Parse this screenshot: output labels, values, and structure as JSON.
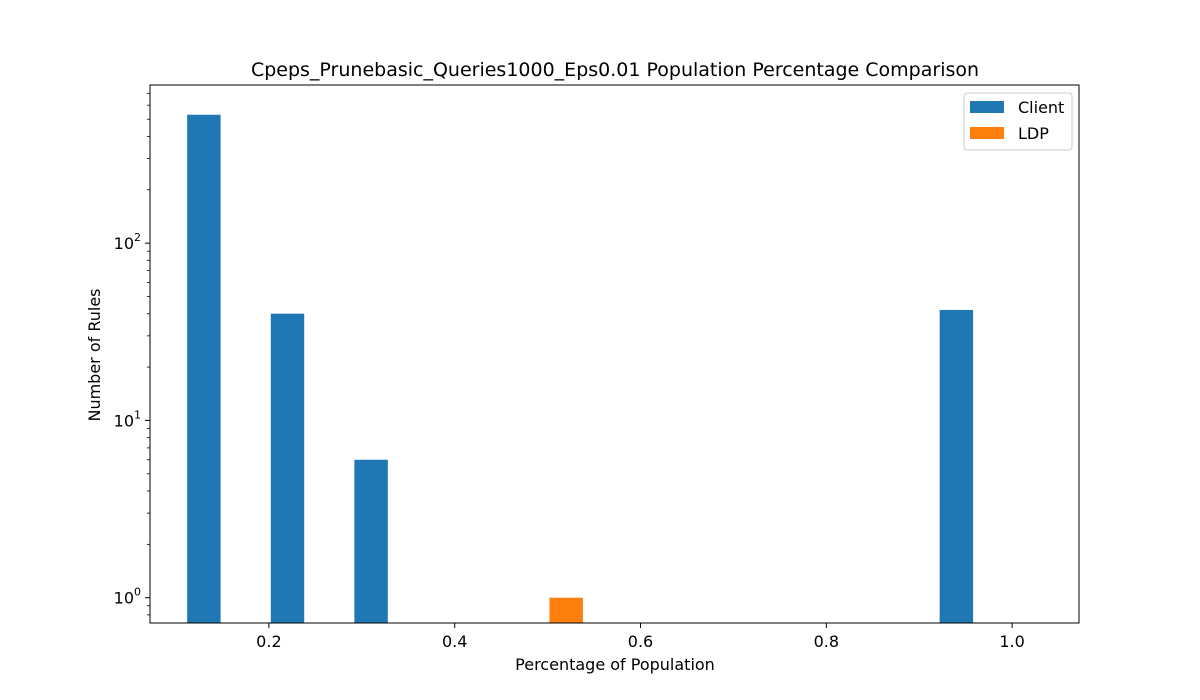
{
  "chart_data": {
    "type": "bar",
    "title": "Cpeps_Prunebasic_Queries1000_Eps0.01 Population Percentage Comparison",
    "xlabel": "Percentage of Population",
    "ylabel": "Number of Rules",
    "y_scale": "log",
    "xlim": [
      0.072,
      1.072
    ],
    "ylim": [
      0.72,
      780
    ],
    "grid": false,
    "legend_position": "top-right",
    "x_ticks": [
      {
        "value": 0.2,
        "label": "0.2"
      },
      {
        "value": 0.4,
        "label": "0.4"
      },
      {
        "value": 0.6,
        "label": "0.6"
      },
      {
        "value": 0.8,
        "label": "0.8"
      },
      {
        "value": 1.0,
        "label": "1.0"
      }
    ],
    "y_ticks": [
      {
        "value": 1,
        "base": "10",
        "exp": "0"
      },
      {
        "value": 10,
        "base": "10",
        "exp": "1"
      },
      {
        "value": 100,
        "base": "10",
        "exp": "2"
      }
    ],
    "bar_width": 0.036,
    "series": [
      {
        "name": "Client",
        "color": "#1f77b4",
        "points": [
          {
            "x": 0.13,
            "y": 530
          },
          {
            "x": 0.22,
            "y": 40
          },
          {
            "x": 0.31,
            "y": 6
          },
          {
            "x": 0.94,
            "y": 42
          }
        ]
      },
      {
        "name": "LDP",
        "color": "#ff7f0e",
        "points": [
          {
            "x": 0.52,
            "y": 1
          }
        ]
      }
    ]
  }
}
